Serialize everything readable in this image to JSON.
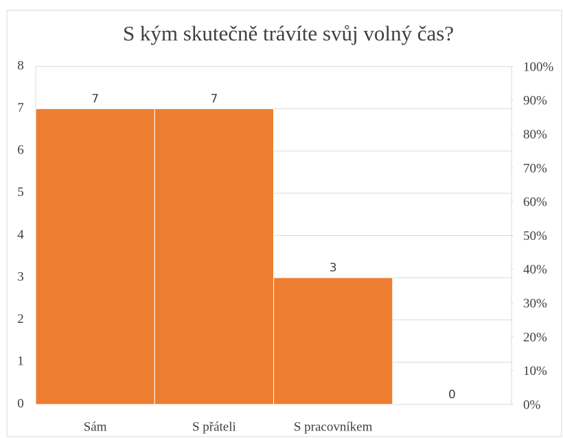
{
  "chart_data": {
    "type": "bar",
    "title": "S kým skutečně trávíte svůj volný čas?",
    "categories": [
      "Sám",
      "S přáteli",
      "S pracovníkem",
      null
    ],
    "values": [
      7,
      7,
      3,
      0
    ],
    "color": "#ed7d31",
    "ylim": [
      0,
      8
    ],
    "yticks": [
      0,
      1,
      2,
      3,
      4,
      5,
      6,
      7,
      8
    ],
    "y2lim": [
      0,
      100
    ],
    "y2ticks": [
      {
        "value": 0,
        "label": "0%"
      },
      {
        "value": 10,
        "label": "10%"
      },
      {
        "value": 20,
        "label": "20%"
      },
      {
        "value": 30,
        "label": "30%"
      },
      {
        "value": 40,
        "label": "40%"
      },
      {
        "value": 50,
        "label": "50%"
      },
      {
        "value": 60,
        "label": "60%"
      },
      {
        "value": 70,
        "label": "70%"
      },
      {
        "value": 80,
        "label": "80%"
      },
      {
        "value": 90,
        "label": "90%"
      },
      {
        "value": 100,
        "label": "100%"
      }
    ],
    "grid": true
  }
}
